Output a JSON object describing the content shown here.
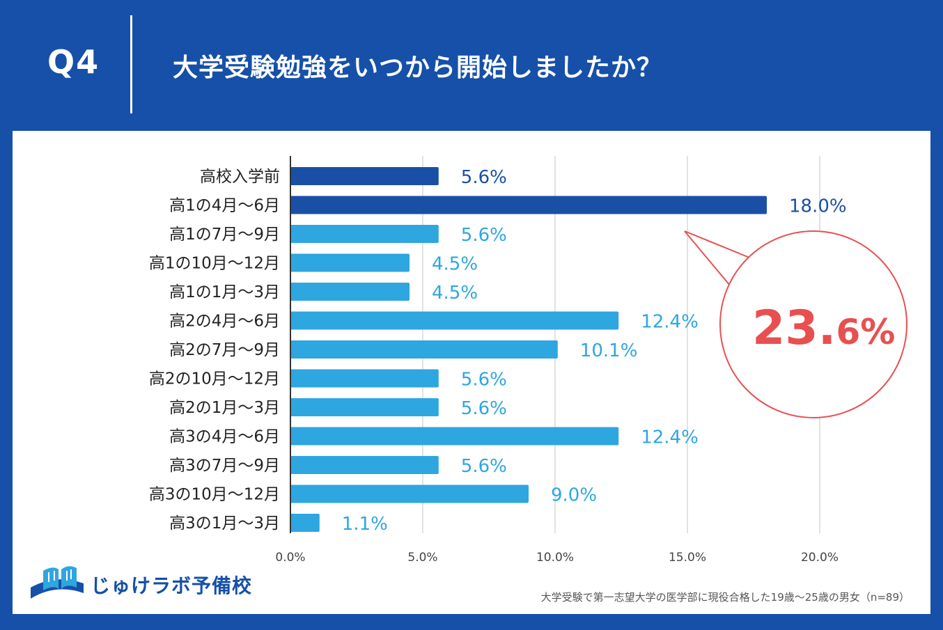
{
  "header": {
    "question_label": "Q4",
    "title": "大学受験勉強をいつから開始しましたか？"
  },
  "colors": {
    "background": "#1650a8",
    "bar_dark": "#1a4fa6",
    "bar_light": "#2ea6e0",
    "callout": "#e85050",
    "grid": "#cfcfcf"
  },
  "chart_data": {
    "type": "bar",
    "orientation": "horizontal",
    "title": "大学受験勉強をいつから開始しましたか？",
    "categories": [
      "高校入学前",
      "高1の4月～6月",
      "高1の7月～9月",
      "高1の10月～12月",
      "高1の1月～3月",
      "高2の4月～6月",
      "高2の7月～9月",
      "高2の10月～12月",
      "高2の1月～3月",
      "高3の4月～6月",
      "高3の7月～9月",
      "高3の10月～12月",
      "高3の1月～3月"
    ],
    "values": [
      5.6,
      18.0,
      5.6,
      4.5,
      4.5,
      12.4,
      10.1,
      5.6,
      5.6,
      12.4,
      5.6,
      9.0,
      1.1
    ],
    "value_labels": [
      "5.6%",
      "18.0%",
      "5.6%",
      "4.5%",
      "4.5%",
      "12.4%",
      "10.1%",
      "5.6%",
      "5.6%",
      "12.4%",
      "5.6%",
      "9.0%",
      "1.1%"
    ],
    "highlight_series": [
      "dark",
      "dark",
      "light",
      "light",
      "light",
      "light",
      "light",
      "light",
      "light",
      "light",
      "light",
      "light",
      "light"
    ],
    "xlim": [
      0,
      25
    ],
    "x_ticks": [
      0,
      5,
      10,
      15,
      20
    ],
    "x_tick_labels": [
      "0.0%",
      "5.0%",
      "10.0%",
      "15.0%",
      "20.0%"
    ],
    "grid": true,
    "xlabel": "",
    "ylabel": "",
    "annotation": {
      "value_main": "23.",
      "value_decimal": "6%",
      "points_to": "高1の4月～6月"
    }
  },
  "logo": {
    "text": "じゅけラボ予備校"
  },
  "footnote": "大学受験で第一志望大学の医学部に現役合格した19歳～25歳の男女（n=89）"
}
